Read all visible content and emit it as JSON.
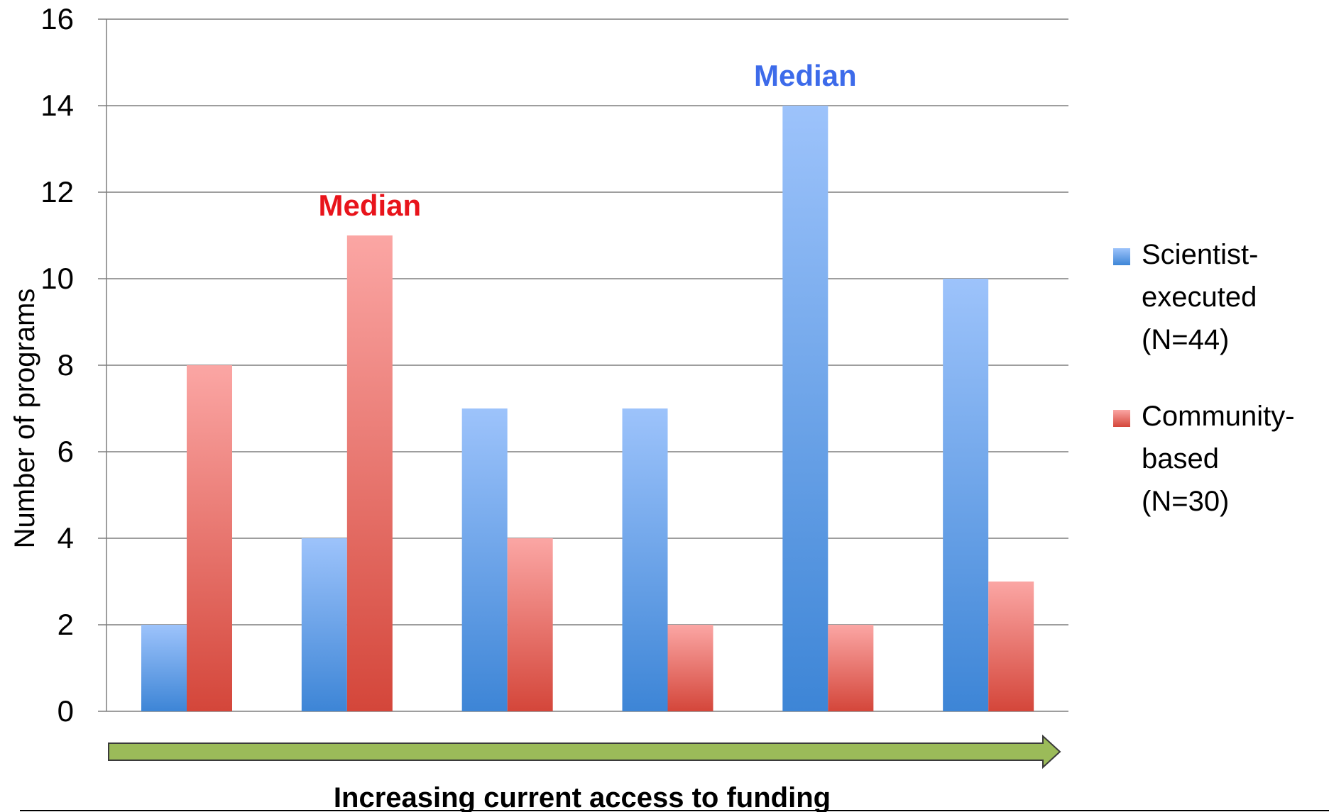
{
  "chart_data": {
    "type": "bar",
    "categories": [
      "",
      "",
      "",
      "",
      "",
      ""
    ],
    "series": [
      {
        "name": "Scientist-executed (N=44)",
        "legend_lines": [
          "Scientist-",
          "executed",
          "(N=44)"
        ],
        "values": [
          2,
          4,
          7,
          7,
          14,
          10
        ],
        "color_top": "#9dc3fb",
        "color_bottom": "#3d85d6"
      },
      {
        "name": "Community-based (N=30)",
        "legend_lines": [
          "Community-",
          "based",
          "(N=30)"
        ],
        "values": [
          8,
          11,
          4,
          2,
          2,
          3
        ],
        "color_top": "#fba6a4",
        "color_bottom": "#d4463a"
      }
    ],
    "ylabel": "Number of programs",
    "xlabel": "Increasing current access to funding",
    "ylim": [
      0,
      16
    ],
    "yticks": [
      0,
      2,
      4,
      6,
      8,
      10,
      12,
      14,
      16
    ],
    "grid": true,
    "legend_position": "right",
    "arrow_color": "#9bbb59",
    "annotations": [
      {
        "text": "Median",
        "category_index": 1,
        "series_index": 1,
        "color": "#e8141b"
      },
      {
        "text": "Median",
        "category_index": 4,
        "series_index": 0,
        "color": "#3d6bea"
      }
    ]
  }
}
